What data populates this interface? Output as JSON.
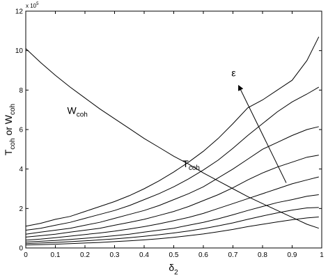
{
  "chart_data": {
    "type": "line",
    "title": "",
    "xlabel": {
      "base": "δ",
      "sub": "2"
    },
    "ylabel": {
      "t_base": "T",
      "t_sub": "coh",
      "middle": " or ",
      "w_base": "W",
      "w_sub": "coh"
    },
    "y_scale_label": {
      "base": "x 10",
      "exp": "5"
    },
    "xlim": [
      0,
      1
    ],
    "ylim": [
      0,
      1200000
    ],
    "xticks": [
      0,
      0.1,
      0.2,
      0.3,
      0.4,
      0.5,
      0.6,
      0.7,
      0.8,
      0.9,
      1
    ],
    "xtick_labels": [
      "0",
      "0.1",
      "0.2",
      "0.3",
      "0.4",
      "0.5",
      "0.6",
      "0.7",
      "0.8",
      "0.9",
      "1"
    ],
    "yticks": [
      0,
      200000,
      400000,
      600000,
      800000,
      1000000,
      1200000
    ],
    "ytick_labels": [
      "0",
      "2",
      "4",
      "6",
      "8",
      "10",
      "12"
    ],
    "grid": false,
    "legend": "none",
    "x": [
      0,
      0.05,
      0.1,
      0.15,
      0.2,
      0.25,
      0.3,
      0.35,
      0.4,
      0.45,
      0.5,
      0.55,
      0.6,
      0.65,
      0.7,
      0.75,
      0.8,
      0.85,
      0.9,
      0.95,
      0.99
    ],
    "series": [
      {
        "values": [
          1010000,
          940000,
          875000,
          815000,
          760000,
          705000,
          655000,
          605000,
          555000,
          510000,
          465000,
          425000,
          380000,
          340000,
          300000,
          260000,
          225000,
          190000,
          155000,
          120000,
          100000
        ]
      },
      {
        "values": [
          110000,
          125000,
          145000,
          160000,
          185000,
          210000,
          235000,
          265000,
          300000,
          340000,
          385000,
          435000,
          490000,
          555000,
          630000,
          710000,
          750000,
          800000,
          850000,
          950000,
          1070000
        ]
      },
      {
        "values": [
          90000,
          100000,
          115000,
          130000,
          150000,
          170000,
          190000,
          215000,
          245000,
          275000,
          310000,
          350000,
          395000,
          445000,
          505000,
          570000,
          630000,
          690000,
          740000,
          780000,
          815000
        ]
      },
      {
        "values": [
          70000,
          80000,
          90000,
          100000,
          115000,
          130000,
          150000,
          170000,
          190000,
          215000,
          245000,
          275000,
          310000,
          355000,
          400000,
          450000,
          500000,
          535000,
          570000,
          600000,
          615000
        ]
      },
      {
        "values": [
          55000,
          62000,
          70000,
          80000,
          90000,
          100000,
          115000,
          130000,
          145000,
          165000,
          185000,
          210000,
          240000,
          270000,
          305000,
          345000,
          380000,
          410000,
          435000,
          460000,
          470000
        ]
      },
      {
        "values": [
          40000,
          45000,
          52000,
          60000,
          68000,
          76000,
          85000,
          96000,
          108000,
          122000,
          138000,
          155000,
          175000,
          200000,
          225000,
          250000,
          275000,
          300000,
          325000,
          345000,
          360000
        ]
      },
      {
        "values": [
          30000,
          34000,
          38000,
          43000,
          49000,
          55000,
          62000,
          70000,
          80000,
          90000,
          100000,
          115000,
          130000,
          148000,
          168000,
          190000,
          210000,
          230000,
          245000,
          262000,
          270000
        ]
      },
      {
        "values": [
          22000,
          25000,
          28000,
          32000,
          36000,
          41000,
          46000,
          52000,
          59000,
          67000,
          76000,
          86000,
          98000,
          112000,
          127000,
          145000,
          162000,
          178000,
          192000,
          203000,
          205000
        ]
      },
      {
        "values": [
          15000,
          17000,
          19000,
          22000,
          25000,
          28000,
          32000,
          36000,
          41000,
          47000,
          54000,
          62000,
          71000,
          82000,
          94000,
          108000,
          120000,
          132000,
          143000,
          152000,
          157000
        ]
      }
    ],
    "annotations": [
      {
        "id": "w",
        "base": "W",
        "sub": "coh",
        "x": 0.14,
        "y": 680000
      },
      {
        "id": "t",
        "base": "T",
        "sub": "coh",
        "x": 0.53,
        "y": 410000
      },
      {
        "id": "eps",
        "text": "ε",
        "x": 0.695,
        "y": 870000
      }
    ],
    "arrow": {
      "from": [
        0.88,
        330000
      ],
      "to": [
        0.72,
        820000
      ]
    }
  }
}
